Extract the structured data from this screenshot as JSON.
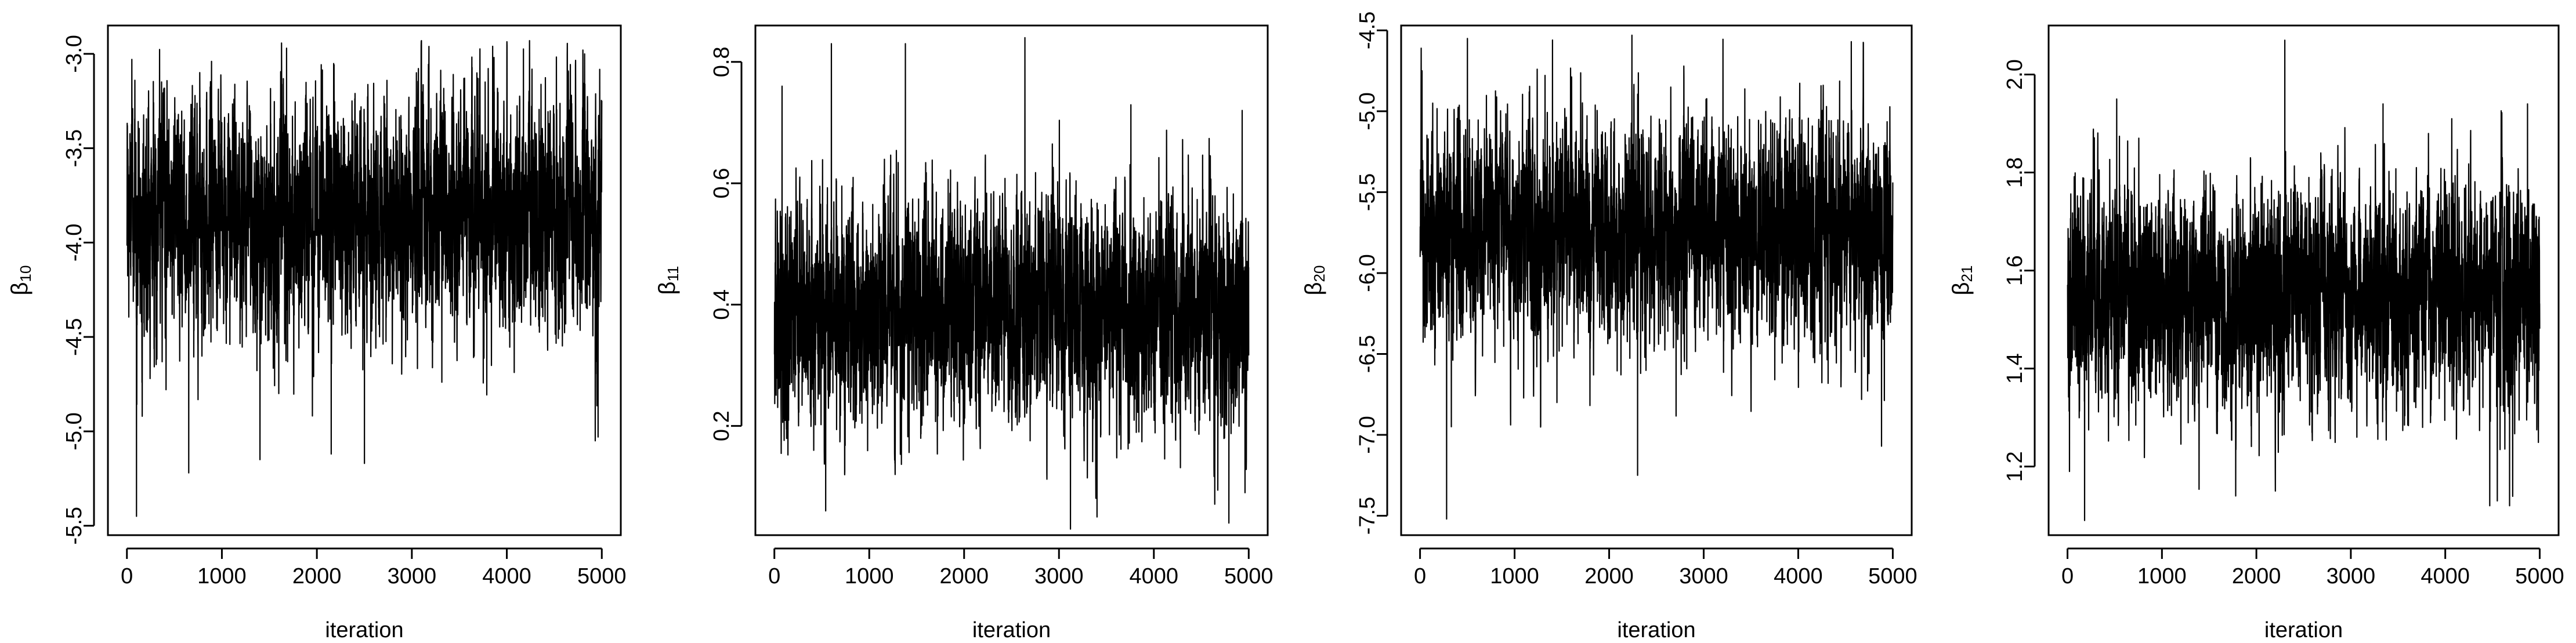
{
  "chart_data": [
    {
      "type": "line",
      "xlabel": "iteration",
      "ylabel": {
        "symbol": "β",
        "subscript": "10"
      },
      "x_range": [
        1,
        5000
      ],
      "xlim": [
        -200,
        5200
      ],
      "ylim": [
        -5.55,
        -2.85
      ],
      "x_ticks": [
        0,
        1000,
        2000,
        3000,
        4000,
        5000
      ],
      "y_ticks": [
        -5.5,
        -5.0,
        -4.5,
        -4.0,
        -3.5,
        -3.0
      ],
      "y_tick_labels": [
        "-5.5",
        "-5.0",
        "-4.5",
        "-4.0",
        "-3.5",
        "-3.0"
      ],
      "series": [
        {
          "min": -5.45,
          "max": -2.93,
          "center": -3.85,
          "spread": 0.3,
          "dips": [
            [
              100,
              -5.45
            ],
            [
              160,
              -4.92
            ],
            [
              650,
              -5.22
            ],
            [
              1400,
              -5.15
            ],
            [
              2150,
              -5.12
            ],
            [
              2500,
              -5.17
            ],
            [
              4930,
              -5.05
            ],
            [
              4960,
              -5.03
            ]
          ],
          "spikes": [
            [
              1680,
              -2.97
            ],
            [
              3100,
              -2.93
            ],
            [
              3850,
              -2.96
            ],
            [
              4800,
              -2.98
            ]
          ]
        }
      ],
      "grid": false
    },
    {
      "type": "line",
      "xlabel": "iteration",
      "ylabel": {
        "symbol": "β",
        "subscript": "11"
      },
      "x_range": [
        1,
        5000
      ],
      "xlim": [
        -200,
        5200
      ],
      "ylim": [
        0.02,
        0.86
      ],
      "x_ticks": [
        0,
        1000,
        2000,
        3000,
        4000,
        5000
      ],
      "y_ticks": [
        0.2,
        0.4,
        0.6,
        0.8
      ],
      "y_tick_labels": [
        "0.2",
        "0.4",
        "0.6",
        "0.8"
      ],
      "series": [
        {
          "min": 0.03,
          "max": 0.84,
          "center": 0.39,
          "spread": 0.09,
          "dips": [
            [
              540,
              0.06
            ],
            [
              3120,
              0.03
            ],
            [
              3400,
              0.05
            ],
            [
              4790,
              0.04
            ],
            [
              4960,
              0.09
            ]
          ],
          "spikes": [
            [
              80,
              0.76
            ],
            [
              600,
              0.83
            ],
            [
              1380,
              0.83
            ],
            [
              2640,
              0.84
            ],
            [
              4930,
              0.72
            ]
          ]
        }
      ],
      "grid": false
    },
    {
      "type": "line",
      "xlabel": "iteration",
      "ylabel": {
        "symbol": "β",
        "subscript": "20"
      },
      "x_range": [
        1,
        5000
      ],
      "xlim": [
        -200,
        5200
      ],
      "ylim": [
        -7.62,
        -4.47
      ],
      "x_ticks": [
        0,
        1000,
        2000,
        3000,
        4000,
        5000
      ],
      "y_ticks": [
        -7.5,
        -7.0,
        -6.5,
        -6.0,
        -5.5,
        -5.0,
        -4.5
      ],
      "y_tick_labels": [
        "-7.5",
        "-7.0",
        "-6.5",
        "-6.0",
        "-5.5",
        "-5.0",
        "-4.5"
      ],
      "series": [
        {
          "min": -7.52,
          "max": -4.53,
          "center": -5.75,
          "spread": 0.33,
          "dips": [
            [
              280,
              -7.52
            ],
            [
              330,
              -6.95
            ],
            [
              2300,
              -7.25
            ],
            [
              4880,
              -7.07
            ]
          ],
          "spikes": [
            [
              20,
              -4.75
            ],
            [
              500,
              -4.55
            ],
            [
              1400,
              -4.56
            ],
            [
              2240,
              -4.53
            ],
            [
              4560,
              -4.57
            ]
          ]
        }
      ],
      "grid": false
    },
    {
      "type": "line",
      "xlabel": "iteration",
      "ylabel": {
        "symbol": "β",
        "subscript": "21"
      },
      "x_range": [
        1,
        5000
      ],
      "xlim": [
        -200,
        5200
      ],
      "ylim": [
        1.06,
        2.1
      ],
      "x_ticks": [
        0,
        1000,
        2000,
        3000,
        4000,
        5000
      ],
      "y_ticks": [
        1.2,
        1.4,
        1.6,
        1.8,
        2.0
      ],
      "y_tick_labels": [
        "1.2",
        "1.4",
        "1.6",
        "1.8",
        "2.0"
      ],
      "series": [
        {
          "min": 1.08,
          "max": 2.07,
          "center": 1.55,
          "spread": 0.11,
          "dips": [
            [
              20,
              1.19
            ],
            [
              180,
              1.09
            ],
            [
              1780,
              1.14
            ],
            [
              2200,
              1.15
            ],
            [
              4470,
              1.12
            ],
            [
              4550,
              1.13
            ],
            [
              4680,
              1.12
            ]
          ],
          "spikes": [
            [
              520,
              1.95
            ],
            [
              2300,
              2.07
            ],
            [
              3340,
              1.94
            ],
            [
              4870,
              1.94
            ]
          ]
        }
      ],
      "grid": false
    }
  ]
}
